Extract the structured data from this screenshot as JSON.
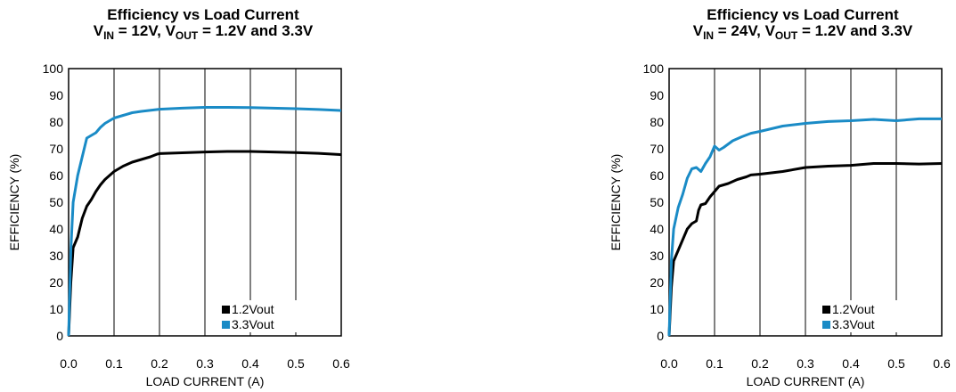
{
  "chart_data": [
    {
      "type": "line",
      "title_line1": "Efficiency vs Load Current",
      "title_line2": {
        "a": "V",
        "a_sub": "IN",
        "b": " = 12V, V",
        "b_sub": "OUT",
        "c": " = 1.2V and 3.3V"
      },
      "xlabel": "LOAD CURRENT (A)",
      "ylabel": "EFFICIENCY (%)",
      "xlim": [
        0,
        0.6
      ],
      "ylim": [
        0,
        100
      ],
      "xticks": [
        "0.0",
        "0.1",
        "0.2",
        "0.3",
        "0.4",
        "0.5",
        "0.6"
      ],
      "yticks": [
        "0",
        "10",
        "20",
        "30",
        "40",
        "50",
        "60",
        "70",
        "80",
        "90",
        "100"
      ],
      "grid": "vertical",
      "legend_position": "bottom-right",
      "series": [
        {
          "name": "1.2Vout",
          "color": "#000000",
          "x": [
            0,
            0.005,
            0.01,
            0.02,
            0.03,
            0.04,
            0.05,
            0.06,
            0.07,
            0.08,
            0.09,
            0.1,
            0.12,
            0.14,
            0.16,
            0.18,
            0.195,
            0.2,
            0.25,
            0.3,
            0.35,
            0.4,
            0.45,
            0.5,
            0.55,
            0.6
          ],
          "y": [
            0,
            20,
            33,
            37,
            44,
            48.5,
            51,
            54,
            56.5,
            58.5,
            60,
            61.5,
            63.5,
            65,
            66,
            67,
            68,
            68.2,
            68.5,
            68.8,
            69,
            69,
            68.8,
            68.6,
            68.3,
            67.8
          ]
        },
        {
          "name": "3.3Vout",
          "color": "#1a8bc6",
          "x": [
            0,
            0.005,
            0.01,
            0.02,
            0.03,
            0.04,
            0.05,
            0.06,
            0.07,
            0.08,
            0.09,
            0.1,
            0.12,
            0.14,
            0.16,
            0.2,
            0.25,
            0.3,
            0.35,
            0.4,
            0.45,
            0.5,
            0.55,
            0.6
          ],
          "y": [
            0,
            32,
            50,
            60,
            67,
            74,
            75,
            76,
            78,
            79.5,
            80.5,
            81.5,
            82.5,
            83.5,
            84,
            84.8,
            85.2,
            85.5,
            85.5,
            85.4,
            85.2,
            85,
            84.7,
            84.3
          ]
        }
      ]
    },
    {
      "type": "line",
      "title_line1": "Efficiency vs Load Current",
      "title_line2": {
        "a": "V",
        "a_sub": "IN",
        "b": " = 24V, V",
        "b_sub": "OUT",
        "c": " = 1.2V and 3.3V"
      },
      "xlabel": "LOAD CURRENT (A)",
      "ylabel": "EFFICIENCY (%)",
      "xlim": [
        0,
        0.6
      ],
      "ylim": [
        0,
        100
      ],
      "xticks": [
        "0.0",
        "0.1",
        "0.2",
        "0.3",
        "0.4",
        "0.5",
        "0.6"
      ],
      "yticks": [
        "0",
        "10",
        "20",
        "30",
        "40",
        "50",
        "60",
        "70",
        "80",
        "90",
        "100"
      ],
      "grid": "vertical",
      "legend_position": "bottom-right",
      "series": [
        {
          "name": "1.2Vout",
          "color": "#000000",
          "x": [
            0,
            0.005,
            0.01,
            0.02,
            0.03,
            0.04,
            0.05,
            0.06,
            0.065,
            0.07,
            0.08,
            0.09,
            0.1,
            0.11,
            0.12,
            0.13,
            0.15,
            0.17,
            0.18,
            0.2,
            0.25,
            0.3,
            0.35,
            0.4,
            0.45,
            0.5,
            0.55,
            0.6
          ],
          "y": [
            0,
            18,
            28,
            32,
            36,
            40,
            42,
            43,
            47,
            49,
            49.5,
            52,
            54,
            56,
            56.5,
            57,
            58.5,
            59.5,
            60.2,
            60.5,
            61.5,
            63,
            63.5,
            63.8,
            64.5,
            64.5,
            64.3,
            64.5
          ]
        },
        {
          "name": "3.3Vout",
          "color": "#1a8bc6",
          "x": [
            0,
            0.005,
            0.01,
            0.02,
            0.03,
            0.04,
            0.05,
            0.06,
            0.07,
            0.08,
            0.09,
            0.1,
            0.11,
            0.12,
            0.14,
            0.16,
            0.18,
            0.2,
            0.25,
            0.3,
            0.35,
            0.4,
            0.45,
            0.5,
            0.55,
            0.6
          ],
          "y": [
            0,
            28,
            40,
            48,
            53,
            59,
            62.5,
            63,
            61.5,
            64.5,
            67,
            71,
            69.5,
            70.5,
            73,
            74.5,
            75.8,
            76.5,
            78.5,
            79.5,
            80.2,
            80.5,
            81,
            80.5,
            81.2,
            81.2
          ]
        }
      ]
    }
  ]
}
